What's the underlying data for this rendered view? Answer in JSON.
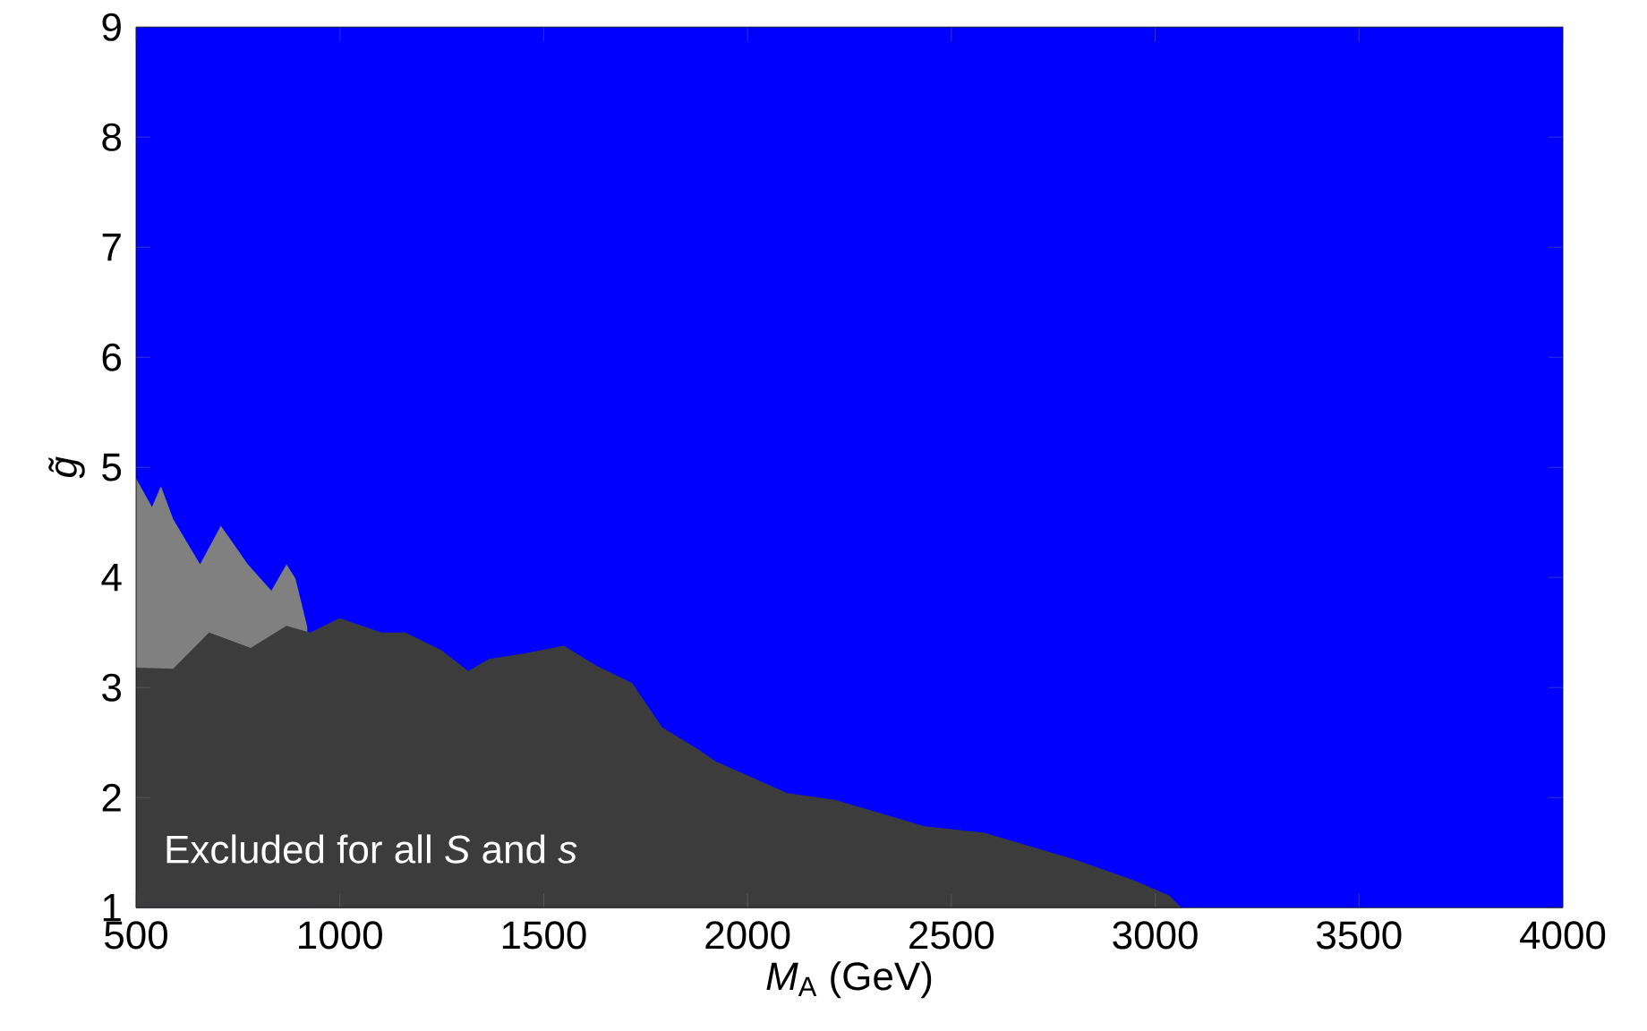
{
  "chart_data": {
    "type": "area",
    "xlabel": "*M*$_{A}$ (GeV)",
    "ylabel": "*g̃*",
    "xlim": [
      500,
      4000
    ],
    "ylim": [
      1,
      9
    ],
    "xticks": [
      500,
      1000,
      1500,
      2000,
      2500,
      3000,
      3500,
      4000
    ],
    "yticks": [
      1,
      2,
      3,
      4,
      5,
      6,
      7,
      8,
      9
    ],
    "grid": false,
    "bands": [
      {
        "axis": "y",
        "from": 1,
        "to": 9,
        "color": "#0000ff"
      }
    ],
    "annotations": [
      "Excluded for all *S* and *s*"
    ],
    "series": [
      {
        "color": "#808080",
        "x": [
          500,
          539,
          561,
          591,
          657,
          708,
          774,
          832,
          869,
          891,
          920
        ],
        "values": [
          4.9,
          4.64,
          4.83,
          4.53,
          4.12,
          4.47,
          4.12,
          3.88,
          4.12,
          3.99,
          3.55
        ]
      },
      {
        "color": "#3c3c3c",
        "x": [
          500,
          591,
          679,
          781,
          869,
          927,
          1000,
          1102,
          1161,
          1249,
          1315,
          1366,
          1454,
          1549,
          1629,
          1717,
          1790,
          1878,
          1922,
          2098,
          2215,
          2434,
          2581,
          2800,
          2947,
          3035,
          3064
        ],
        "values": [
          3.18,
          3.17,
          3.5,
          3.36,
          3.56,
          3.5,
          3.63,
          3.5,
          3.5,
          3.34,
          3.15,
          3.26,
          3.31,
          3.38,
          3.2,
          3.04,
          2.64,
          2.44,
          2.33,
          2.04,
          1.98,
          1.74,
          1.68,
          1.44,
          1.25,
          1.11,
          1.0
        ]
      }
    ]
  }
}
